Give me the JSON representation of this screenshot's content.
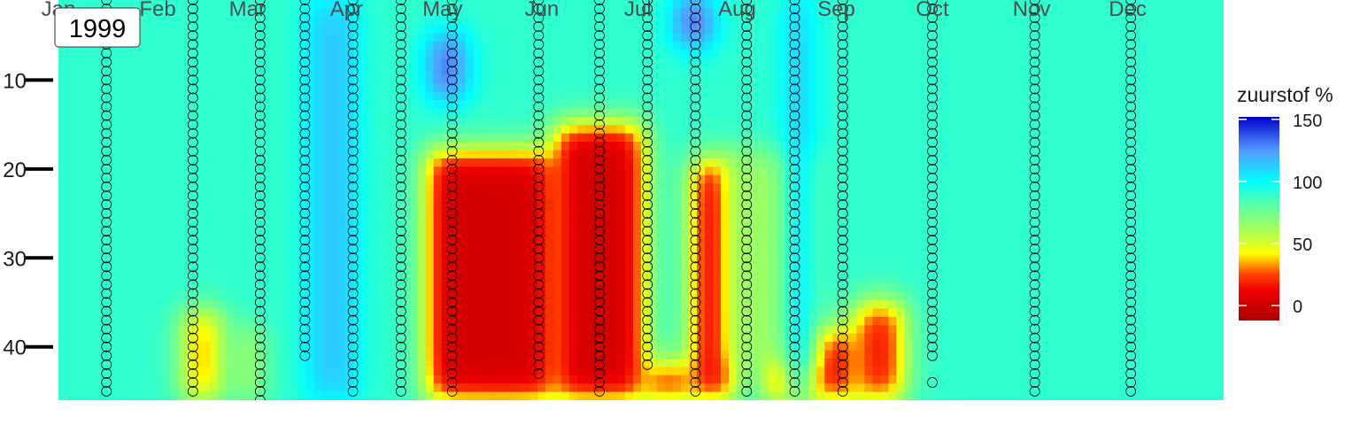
{
  "chart_data": {
    "type": "heatmap",
    "title": "1999",
    "xlabel": "",
    "ylabel": "",
    "x_ticks": [
      "Jan",
      "Feb",
      "Mar",
      "Apr",
      "May",
      "Jun",
      "Jul",
      "Aug",
      "Sep",
      "Oct",
      "Nov",
      "Dec"
    ],
    "y_ticks": [
      10,
      20,
      30,
      40
    ],
    "y_range": [
      1,
      46
    ],
    "x_range_day": [
      1,
      365
    ],
    "legend": {
      "title": "zuurstof %",
      "position": "right",
      "ticks": [
        150,
        100,
        50,
        0
      ],
      "range": [
        -12,
        152
      ],
      "colors": [
        {
          "value": -12,
          "color": "#aa0000"
        },
        {
          "value": 12,
          "color": "#ee0000"
        },
        {
          "value": 25,
          "color": "#ff4000"
        },
        {
          "value": 42,
          "color": "#ffff00"
        },
        {
          "value": 60,
          "color": "#aaff55"
        },
        {
          "value": 82,
          "color": "#55ffaa"
        },
        {
          "value": 100,
          "color": "#00ffff"
        },
        {
          "value": 125,
          "color": "#5599ff"
        },
        {
          "value": 152,
          "color": "#0000cc"
        }
      ]
    },
    "field": {
      "background_value": 90,
      "regions": [
        {
          "x": [
            116,
            156
          ],
          "y": [
            18,
            46
          ],
          "value": 2
        },
        {
          "x": [
            156,
            184
          ],
          "y": [
            15,
            46
          ],
          "value": 2
        },
        {
          "x": [
            184,
            199
          ],
          "y": [
            42,
            46
          ],
          "value": 8
        },
        {
          "x": [
            199,
            212
          ],
          "y": [
            19,
            46
          ],
          "value": 2
        },
        {
          "x": [
            222,
            250
          ],
          "y": [
            38,
            46
          ],
          "value": 4
        },
        {
          "x": [
            250,
            265
          ],
          "y": [
            35,
            46
          ],
          "value": 12
        },
        {
          "x": [
            40,
            52
          ],
          "y": [
            36,
            46
          ],
          "value": 28
        },
        {
          "x": [
            56,
            65
          ],
          "y": [
            38,
            46
          ],
          "value": 60
        },
        {
          "x": [
            79,
            94
          ],
          "y": [
            1,
            46
          ],
          "value": 115
        },
        {
          "x": [
            117,
            128
          ],
          "y": [
            5,
            12
          ],
          "value": 140
        },
        {
          "x": [
            194,
            205
          ],
          "y": [
            1,
            6
          ],
          "value": 145
        },
        {
          "x": [
            210,
            238
          ],
          "y": [
            18,
            42
          ],
          "value": 62
        },
        {
          "x": [
            229,
            236
          ],
          "y": [
            1,
            46
          ],
          "value": 118
        }
      ]
    },
    "profiles": [
      {
        "day": 16,
        "depth": [
          1,
          45
        ]
      },
      {
        "day": 43,
        "depth": [
          1,
          45
        ]
      },
      {
        "day": 64,
        "depth": [
          1,
          36
        ]
      },
      {
        "day": 64,
        "depth": [
          37,
          46
        ]
      },
      {
        "day": 78,
        "depth": [
          1,
          41
        ]
      },
      {
        "day": 93,
        "depth": [
          1,
          45
        ]
      },
      {
        "day": 108,
        "depth": [
          1,
          45
        ]
      },
      {
        "day": 124,
        "depth": [
          1,
          45
        ]
      },
      {
        "day": 151,
        "depth": [
          1,
          43
        ]
      },
      {
        "day": 170,
        "depth": [
          1,
          45
        ]
      },
      {
        "day": 185,
        "depth": [
          1,
          42
        ]
      },
      {
        "day": 200,
        "depth": [
          1,
          45
        ]
      },
      {
        "day": 216,
        "depth": [
          1,
          45
        ]
      },
      {
        "day": 231,
        "depth": [
          1,
          45
        ]
      },
      {
        "day": 246,
        "depth": [
          1,
          45
        ]
      },
      {
        "day": 274,
        "depth": [
          1,
          41
        ]
      },
      {
        "day": 274,
        "depth": [
          44,
          44
        ]
      },
      {
        "day": 306,
        "depth": [
          1,
          45
        ]
      },
      {
        "day": 336,
        "depth": [
          1,
          45
        ]
      }
    ]
  }
}
